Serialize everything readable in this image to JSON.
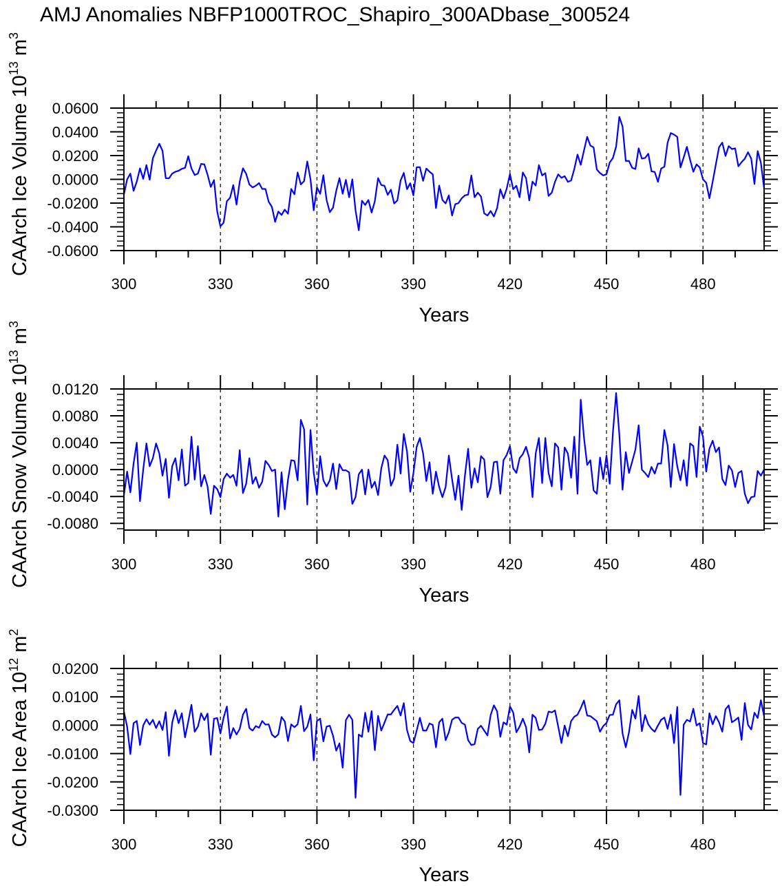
{
  "title": "AMJ Anomalies NBFP1000TROC_Shapiro_300ADbase_300524",
  "chart_data": [
    {
      "type": "line",
      "title": "AMJ Anomalies NBFP1000TROC_Shapiro_300ADbase_300524",
      "xlabel": "Years",
      "ylabel": "CAArch Ice Volume 10^13 m^3",
      "ylabel_parts": {
        "main": "CAArch Ice Volume 10",
        "exp": "13",
        "unit": " m",
        "unit_exp": "3"
      },
      "x_start": 300,
      "x_step": 1,
      "xlim": [
        300,
        499
      ],
      "ylim": [
        -0.06,
        0.06
      ],
      "xticks": [
        300,
        330,
        360,
        390,
        420,
        450,
        480
      ],
      "xtick_labels": [
        "300",
        "330",
        "360",
        "390",
        "420",
        "450",
        "480"
      ],
      "yticks": [
        0.06,
        0.04,
        0.02,
        0,
        -0.02,
        -0.04,
        -0.06
      ],
      "ytick_labels": [
        "0.0600",
        "0.0400",
        "0.0200",
        "0.0000",
        "-0.0200",
        "-0.0400",
        "-0.0600"
      ],
      "yminor_step": 0.004,
      "grid": "dashed vertical lines at major x ticks",
      "color": "#0000ff",
      "values": [
        -0.0128,
        0,
        0.0048,
        -0.0097,
        -0.0019,
        0.0093,
        0.0004,
        0.012,
        -0.0004,
        0.0178,
        0.0242,
        0.03,
        0.024,
        0.001,
        0.0008,
        0.0048,
        0.0064,
        0.0072,
        0.0089,
        0.0097,
        0.0195,
        0.0091,
        0.0037,
        0.0048,
        0.013,
        0.0126,
        0.0039,
        -0.0064,
        -0.0006,
        -0.0271,
        -0.0396,
        -0.0365,
        -0.0184,
        -0.0155,
        -0.0048,
        -0.0213,
        -0.0019,
        0.0093,
        0.0046,
        -0.0043,
        -0.0068,
        -0.0054,
        -0.0031,
        -0.0081,
        -0.0081,
        -0.0189,
        -0.0232,
        -0.0358,
        -0.0271,
        -0.03,
        -0.0255,
        -0.029,
        -0.0081,
        -0.0126,
        0.0058,
        -0.0043,
        -0.0015,
        0.0151,
        0,
        -0.0261,
        -0.0068,
        -0.0122,
        0.0035,
        -0.0174,
        -0.0277,
        -0.0238,
        -0.0097,
        0.001,
        -0.0122,
        -0.0004,
        -0.0151,
        0,
        -0.0261,
        -0.0429,
        -0.018,
        -0.0216,
        -0.0174,
        -0.028,
        -0.0184,
        0.001,
        -0.0048,
        -0.0054,
        -0.0131,
        -0.0087,
        -0.0203,
        -0.0178,
        -0.001,
        0.0054,
        -0.0083,
        -0.0033,
        -0.0135,
        0.0102,
        0.0102,
        -0.0013,
        0.0091,
        0.0064,
        0.0043,
        -0.0242,
        -0.0052,
        -0.0174,
        -0.0203,
        -0.0135,
        -0.0305,
        -0.0209,
        -0.02,
        -0.016,
        -0.0135,
        -0.0129,
        0.0033,
        -0.0151,
        -0.0112,
        -0.0145,
        -0.0286,
        -0.0305,
        -0.0267,
        -0.0313,
        -0.0242,
        -0.0083,
        -0.016,
        -0.0077,
        0.0045,
        -0.0083,
        -0.0054,
        -0.0151,
        0.0058,
        0.001,
        -0.0178,
        -0.0019,
        -0.0052,
        0.012,
        0.0033,
        0.0052,
        -0.014,
        -0.0112,
        -0.0021,
        0.0042,
        0.0013,
        0.0027,
        -0.0021,
        -0.001,
        0.0087,
        0.0209,
        0.0122,
        0.0242,
        0.0358,
        0.0284,
        0.0269,
        0.0083,
        0.0052,
        0.0033,
        0.0043,
        0.0141,
        0.018,
        0.0276,
        0.0526,
        0.0445,
        0.0155,
        0.0155,
        0.0097,
        0.0087,
        0.0261,
        0.0174,
        0.018,
        0.0216,
        0.0068,
        0.0062,
        -0.0021,
        0.0091,
        0.0106,
        0.0309,
        0.039,
        0.0377,
        0.0358,
        0.01,
        0.0184,
        0.0274,
        0.0164,
        0.0064,
        0.0126,
        0.01,
        0,
        -0.0029,
        -0.016,
        -0.0021,
        0.0126,
        0.0271,
        0.0309,
        0.0197,
        0.028,
        0.0255,
        0.0261,
        0.011,
        0.0145,
        0.0174,
        0.0228,
        0.0174,
        -0.0039,
        0.0238,
        0.0139,
        -0.0077
      ]
    },
    {
      "type": "line",
      "xlabel": "Years",
      "ylabel": "CAArch Snow Volume 10^13 m^3",
      "ylabel_parts": {
        "main": "CAArch Snow Volume 10",
        "exp": "13",
        "unit": " m",
        "unit_exp": "3"
      },
      "x_start": 300,
      "x_step": 1,
      "xlim": [
        300,
        499
      ],
      "ylim": [
        -0.009,
        0.012
      ],
      "xticks": [
        300,
        330,
        360,
        390,
        420,
        450,
        480
      ],
      "xtick_labels": [
        "300",
        "330",
        "360",
        "390",
        "420",
        "450",
        "480"
      ],
      "yticks": [
        0.012,
        0.008,
        0.004,
        0,
        -0.004,
        -0.008
      ],
      "ytick_labels": [
        "0.0120",
        "0.0080",
        "0.0040",
        "0.0000",
        "-0.0040",
        "-0.0080"
      ],
      "yminor_step": 0.0008,
      "grid": "dashed vertical lines at major x ticks",
      "color": "#0000ff",
      "values": [
        -0.0038,
        -0.0003,
        -0.0034,
        0.0009,
        0.004,
        -0.0047,
        0,
        0.0039,
        0.0005,
        0.0017,
        0.0039,
        0.0024,
        -0.0009,
        0.0016,
        -0.0042,
        0.0005,
        0.0017,
        -0.0016,
        0.003,
        -0.0024,
        -0.002,
        0.0049,
        -0.0015,
        0.0035,
        -0.0025,
        -0.0008,
        -0.0025,
        -0.0066,
        -0.0024,
        -0.0029,
        -0.0041,
        -0.0014,
        -0.0006,
        -0.0012,
        -0.0008,
        -0.0024,
        0.0029,
        -0.0035,
        -0.0021,
        0.0017,
        -0.0021,
        -0.0011,
        -0.0027,
        -0.0018,
        0.0013,
        0.0007,
        -0.0002,
        0,
        -0.007,
        -0.0004,
        -0.0059,
        -0.0015,
        0.0014,
        0.0013,
        -0.0016,
        0.0074,
        0.006,
        -0.0052,
        0.0059,
        -0.0005,
        -0.0037,
        0.002,
        -0.0016,
        -0.0025,
        -0.0016,
        0.0009,
        -0.0029,
        0.0008,
        -0.0001,
        -0.0001,
        -0.0004,
        -0.0051,
        -0.0041,
        -0.0007,
        0,
        -0.0037,
        0,
        -0.0027,
        -0.0018,
        -0.0038,
        0.0002,
        0.0021,
        0.0014,
        -0.0024,
        -0.0013,
        0.0037,
        -0.0006,
        0.0053,
        0.0027,
        -0.0033,
        -0.0005,
        0.0034,
        0.0047,
        0.0024,
        -0.0017,
        0.0011,
        -0.0036,
        -0.0003,
        -0.0026,
        -0.0041,
        -0.0026,
        0.0021,
        -0.0014,
        -0.0045,
        -0.0009,
        -0.006,
        -0.0009,
        0.0031,
        -0.0027,
        0.0002,
        -0.0019,
        0.002,
        0.0015,
        -0.0041,
        -0.0026,
        0.0011,
        0.0012,
        -0.0036,
        0.0014,
        0.0022,
        0.0035,
        0.0002,
        -0.0005,
        0.0017,
        0.0023,
        0.0034,
        0.0017,
        -0.0041,
        0.0024,
        0.0047,
        -0.002,
        0.0047,
        -0.0005,
        -0.0025,
        0.0039,
        0.0033,
        -0.003,
        0.0033,
        0.0024,
        -0.0012,
        0.0049,
        -0.0036,
        0.0104,
        0.0048,
        0.0007,
        0.0014,
        -0.0031,
        -0.0036,
        0.0018,
        -0.0014,
        0.0021,
        -0.0021,
        0.0055,
        0.0114,
        0.0052,
        -0.003,
        0.0026,
        -0.0005,
        0.0012,
        0.003,
        0.0066,
        0,
        -0.0005,
        -0.0011,
        0.0004,
        -0.0006,
        0.0009,
        0.0009,
        0.0059,
        0.0036,
        -0.0026,
        0.0038,
        0.0005,
        -0.0016,
        0.0014,
        -0.0024,
        0.0039,
        0.0035,
        -0.0011,
        0.0064,
        0.0049,
        -0.0003,
        0.0031,
        0.0043,
        0.0026,
        0.0033,
        -0.0014,
        -0.0023,
        0.0006,
        -0.0001,
        -0.0026,
        -0.0005,
        -0.0002,
        -0.0036,
        -0.005,
        -0.0041,
        -0.004,
        -0.0002,
        -0.0009,
        0
      ]
    },
    {
      "type": "line",
      "xlabel": "Years",
      "ylabel": "CAArch Ice Area 10^12 m^2",
      "ylabel_parts": {
        "main": "CAArch Ice Area 10",
        "exp": "12",
        "unit": " m",
        "unit_exp": "2"
      },
      "x_start": 300,
      "x_step": 1,
      "xlim": [
        300,
        499
      ],
      "ylim": [
        -0.03,
        0.02
      ],
      "xticks": [
        300,
        330,
        360,
        390,
        420,
        450,
        480
      ],
      "xtick_labels": [
        "300",
        "330",
        "360",
        "390",
        "420",
        "450",
        "480"
      ],
      "yticks": [
        0.02,
        0.01,
        0,
        -0.01,
        -0.02,
        -0.03
      ],
      "ytick_labels": [
        "0.0200",
        "0.0100",
        "0.0000",
        "-0.0100",
        "-0.0200",
        "-0.0300"
      ],
      "yminor_step": 0.002,
      "grid": "dashed vertical lines at major x ticks",
      "color": "#0000ff",
      "values": [
        0.0048,
        -0.0005,
        -0.0102,
        0.0007,
        0.0015,
        -0.007,
        -0.0001,
        0.0021,
        0.0002,
        0.0019,
        -0.001,
        0.0014,
        -0.0017,
        0.0046,
        -0.0108,
        0.0009,
        0.0053,
        0.0007,
        0.0042,
        -0.0043,
        0.0013,
        0.0072,
        -0.0023,
        -0.0005,
        0.0042,
        0.0018,
        0.0041,
        -0.0104,
        0.0023,
        0.0025,
        -0.0029,
        0.0027,
        0.0066,
        -0.0047,
        -0.001,
        -0.0033,
        -0.0013,
        0.0037,
        0.0058,
        -0.001,
        -0.0019,
        -0.0003,
        -0.0009,
        0.0015,
        0.0002,
        0.0003,
        -0.0033,
        -0.0043,
        -0.0032,
        0.0029,
        0.0013,
        -0.0056,
        0.0003,
        -0.0007,
        0.0003,
        0.0068,
        -0.0021,
        -0.0005,
        0.0038,
        -0.0124,
        0.0015,
        0.0023,
        -0.0057,
        -0.0005,
        -0.0002,
        -0.0037,
        -0.009,
        -0.0064,
        -0.015,
        0.0018,
        0.0037,
        0.0019,
        -0.0256,
        -0.0033,
        -0.0041,
        0.0044,
        -0.0023,
        0.005,
        -0.0088,
        0.0033,
        -0.0019,
        0.0009,
        0.0038,
        0.0038,
        0.0054,
        0.0068,
        0.0034,
        0.0078,
        -0.0017,
        -0.0056,
        -0.0063,
        -0.0019,
        0.0026,
        -0.0019,
        -0.0019,
        0.0006,
        0.0001,
        -0.0078,
        0.001,
        0.0023,
        -0.0053,
        -0.0025,
        0.0019,
        0.0027,
        0.0027,
        0.0008,
        0.0002,
        -0.0053,
        -0.007,
        -0.0067,
        -0.0013,
        -0.0002,
        -0.0019,
        -0.0036,
        0.0036,
        0.007,
        0.0049,
        -0.0041,
        0.001,
        0.0002,
        0.0066,
        0.0045,
        -0.0025,
        -0.0005,
        0.0023,
        -0.0007,
        -0.0096,
        0.0037,
        0.0026,
        -0.0017,
        -0.0015,
        0.0005,
        0.0048,
        0.0045,
        0.0052,
        -0.0005,
        -0.0063,
        -0.0001,
        -0.0039,
        0.0014,
        0.003,
        0.0037,
        0.006,
        0.0087,
        0.0034,
        0.0032,
        0.0023,
        0.0014,
        -0.0023,
        -0.0003,
        0.0008,
        0.0036,
        0.0037,
        0.0074,
        0.0088,
        -0.0029,
        -0.0078,
        -0.0025,
        0.0054,
        0.0023,
        0.0103,
        -0.0021,
        0.0036,
        0.0003,
        -0.0013,
        -0.0023,
        -0.0001,
        0.0019,
        0.0027,
        -0.0013,
        0.0037,
        -0.0063,
        0.0064,
        -0.0246,
        0.0002,
        0.0019,
        0.0013,
        0.0058,
        -0.0001,
        0.0007,
        -0.0063,
        -0.0068,
        0.0042,
        0.0003,
        0.0032,
        0.001,
        -0.0023,
        0.0056,
        0.007,
        0.001,
        0.0018,
        0.0027,
        -0.0052,
        0.0078,
        0.0001,
        -0.0015,
        0.0044,
        0.0025,
        0.0088,
        0.0032
      ]
    }
  ]
}
